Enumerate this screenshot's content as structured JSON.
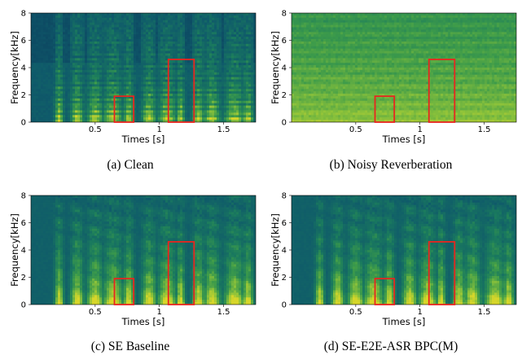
{
  "figure": {
    "y_label": "Frequency[kHz]",
    "x_label": "Times [s]",
    "y_ticks": [
      "0",
      "2",
      "4",
      "6",
      "8"
    ],
    "x_ticks": [
      "0.5",
      "1",
      "1.5"
    ],
    "highlight_color": "#e8251f",
    "colormap": [
      "#0b3b5c",
      "#0f5a6a",
      "#1a7a5e",
      "#3d9b4a",
      "#8cc23a",
      "#d7d62a"
    ],
    "panels": [
      {
        "id": "a",
        "caption": "(a) Clean",
        "style": "clean"
      },
      {
        "id": "b",
        "caption": "(b) Noisy Reverberation",
        "style": "noisy"
      },
      {
        "id": "c",
        "caption": "(c) SE Baseline",
        "style": "enhanced"
      },
      {
        "id": "d",
        "caption": "(d) SE-E2E-ASR BPC(M)",
        "style": "enhanced"
      }
    ]
  },
  "chart_data": [
    {
      "type": "heatmap",
      "xlabel": "Times [s]",
      "ylabel": "Frequency[kHz]",
      "xlim": [
        0,
        1.75
      ],
      "ylim": [
        0,
        8
      ],
      "annotations": [
        {
          "shape": "rectangle",
          "x": [
            0.65,
            0.8
          ],
          "y": [
            0,
            1.9
          ]
        },
        {
          "shape": "rectangle",
          "x": [
            1.07,
            1.27
          ],
          "y": [
            0,
            4.6
          ]
        }
      ]
    },
    {
      "type": "heatmap",
      "xlabel": "Times [s]",
      "ylabel": "Frequency[kHz]",
      "xlim": [
        0,
        1.75
      ],
      "ylim": [
        0,
        8
      ],
      "annotations": [
        {
          "shape": "rectangle",
          "x": [
            0.65,
            0.8
          ],
          "y": [
            0,
            1.9
          ]
        },
        {
          "shape": "rectangle",
          "x": [
            1.07,
            1.27
          ],
          "y": [
            0,
            4.6
          ]
        }
      ]
    },
    {
      "type": "heatmap",
      "xlabel": "Times [s]",
      "ylabel": "Frequency[kHz]",
      "xlim": [
        0,
        1.75
      ],
      "ylim": [
        0,
        8
      ],
      "annotations": [
        {
          "shape": "rectangle",
          "x": [
            0.65,
            0.8
          ],
          "y": [
            0,
            1.9
          ]
        },
        {
          "shape": "rectangle",
          "x": [
            1.07,
            1.27
          ],
          "y": [
            0,
            4.6
          ]
        }
      ]
    },
    {
      "type": "heatmap",
      "xlabel": "Times [s]",
      "ylabel": "Frequency[kHz]",
      "xlim": [
        0,
        1.75
      ],
      "ylim": [
        0,
        8
      ],
      "annotations": [
        {
          "shape": "rectangle",
          "x": [
            0.65,
            0.8
          ],
          "y": [
            0,
            1.9
          ]
        },
        {
          "shape": "rectangle",
          "x": [
            1.07,
            1.27
          ],
          "y": [
            0,
            4.6
          ]
        }
      ]
    }
  ]
}
